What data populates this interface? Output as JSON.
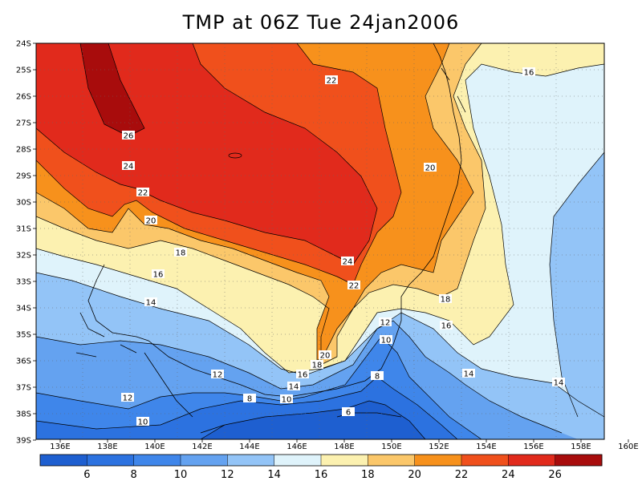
{
  "title": "TMP at 06Z Tue 24jan2006",
  "lat_labels": [
    "24S",
    "25S",
    "26S",
    "27S",
    "28S",
    "29S",
    "30S",
    "31S",
    "32S",
    "33S",
    "34S",
    "35S",
    "36S",
    "37S",
    "38S",
    "39S"
  ],
  "lon_labels": [
    "136E",
    "138E",
    "140E",
    "142E",
    "144E",
    "146E",
    "148E",
    "150E",
    "152E",
    "154E",
    "156E",
    "158E",
    "160E"
  ],
  "contour_labels": [
    {
      "text": "26"
    },
    {
      "text": "24"
    },
    {
      "text": "22"
    },
    {
      "text": "22"
    },
    {
      "text": "24"
    },
    {
      "text": "22"
    },
    {
      "text": "20"
    },
    {
      "text": "20"
    },
    {
      "text": "20"
    },
    {
      "text": "18"
    },
    {
      "text": "18"
    },
    {
      "text": "16"
    },
    {
      "text": "16"
    },
    {
      "text": "16"
    },
    {
      "text": "16"
    },
    {
      "text": "18"
    },
    {
      "text": "14"
    },
    {
      "text": "14"
    },
    {
      "text": "14"
    },
    {
      "text": "14"
    },
    {
      "text": "12"
    },
    {
      "text": "12"
    },
    {
      "text": "12"
    },
    {
      "text": "10"
    },
    {
      "text": "10"
    },
    {
      "text": "10"
    },
    {
      "text": "8"
    },
    {
      "text": "8"
    },
    {
      "text": "6"
    }
  ],
  "colorbar": {
    "labels": [
      "6",
      "8",
      "10",
      "12",
      "14",
      "16",
      "18",
      "20",
      "22",
      "24",
      "26"
    ],
    "colors": [
      "#1e5fd0",
      "#2c72e0",
      "#3f86ea",
      "#64a2f0",
      "#93c4f7",
      "#dff3fb",
      "#fcf1b0",
      "#fbc76a",
      "#f7911c",
      "#f0501c",
      "#e12a1c",
      "#a80c0c"
    ]
  },
  "fill_colors": {
    "c6": "#1e5fd0",
    "c8": "#2c72e0",
    "c10": "#3f86ea",
    "c12": "#64a2f0",
    "c14": "#93c4f7",
    "c16": "#dff3fb",
    "c18": "#fcf1b0",
    "c20": "#fbc76a",
    "c22": "#f7911c",
    "c24": "#f0501c",
    "c26": "#e12a1c",
    "c28": "#a80c0c"
  }
}
